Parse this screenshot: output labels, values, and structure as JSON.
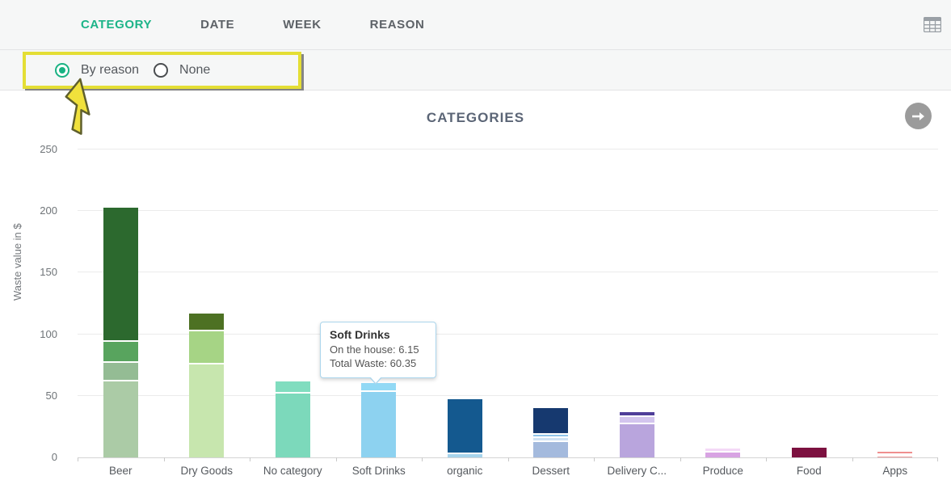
{
  "tabs": [
    {
      "label": "CATEGORY",
      "active": true
    },
    {
      "label": "DATE",
      "active": false
    },
    {
      "label": "WEEK",
      "active": false
    },
    {
      "label": "REASON",
      "active": false
    }
  ],
  "toolbar": {
    "grid_icon": "table-grid-icon"
  },
  "radio_group": {
    "options": [
      {
        "label": "By reason",
        "selected": true
      },
      {
        "label": "None",
        "selected": false
      }
    ]
  },
  "annotation": {
    "highlight_color": "#e4de35",
    "arrow_color": "#f0e13c"
  },
  "next_button": {
    "icon": "arrow-right",
    "color": "#9b9b9b"
  },
  "chart_data": {
    "type": "bar",
    "subtype": "stacked",
    "title": "CATEGORIES",
    "xlabel": "",
    "ylabel": "Waste value in $",
    "ylim": [
      0,
      250
    ],
    "yticks": [
      0,
      50,
      100,
      150,
      200,
      250
    ],
    "grid": true,
    "categories": [
      "Beer",
      "Dry Goods",
      "No category",
      "Soft Drinks",
      "organic",
      "Dessert",
      "Delivery C...",
      "Produce",
      "Food",
      "Apps"
    ],
    "bars": [
      {
        "category": "Beer",
        "total": 203,
        "segments": [
          {
            "value": 108,
            "color": "#2c692e"
          },
          {
            "value": 17,
            "color": "#58a45e"
          },
          {
            "value": 15,
            "color": "#94bc94"
          },
          {
            "value": 63,
            "color": "#abcba6"
          }
        ]
      },
      {
        "category": "Dry Goods",
        "total": 117,
        "segments": [
          {
            "value": 13,
            "color": "#4d7123"
          },
          {
            "value": 27,
            "color": "#a6d485"
          },
          {
            "value": 77,
            "color": "#c7e6ae"
          }
        ]
      },
      {
        "category": "No category",
        "total": 62,
        "segments": [
          {
            "value": 9,
            "color": "#80ddbf"
          },
          {
            "value": 53,
            "color": "#7cd9bb"
          }
        ]
      },
      {
        "category": "Soft Drinks",
        "total": 60.35,
        "segments": [
          {
            "value": 6.15,
            "color": "#92d9f5"
          },
          {
            "value": 54.2,
            "color": "#8dd2f0"
          }
        ]
      },
      {
        "category": "organic",
        "total": 47,
        "segments": [
          {
            "value": 43,
            "color": "#14598f"
          },
          {
            "value": 4,
            "color": "#a6d4ec"
          }
        ]
      },
      {
        "category": "Dessert",
        "total": 40,
        "segments": [
          {
            "value": 20,
            "color": "#16396f"
          },
          {
            "value": 3,
            "color": "#8fc4ea"
          },
          {
            "value": 3,
            "color": "#cfe2f4"
          },
          {
            "value": 14,
            "color": "#a4badd"
          }
        ]
      },
      {
        "category": "Delivery C...",
        "total": 37,
        "segments": [
          {
            "value": 3,
            "color": "#4f3e99"
          },
          {
            "value": 6,
            "color": "#d3c5ee"
          },
          {
            "value": 28,
            "color": "#b9a5dd"
          }
        ]
      },
      {
        "category": "Produce",
        "total": 7,
        "segments": [
          {
            "value": 2,
            "color": "#f4d9f7"
          },
          {
            "value": 5,
            "color": "#d8a3e3"
          }
        ]
      },
      {
        "category": "Food",
        "total": 8,
        "segments": [
          {
            "value": 8,
            "color": "#7c1140"
          }
        ]
      },
      {
        "category": "Apps",
        "total": 4,
        "segments": [
          {
            "value": 1.3,
            "color": "#f08f8f"
          },
          {
            "value": 0.9,
            "color": "#f9c7c7"
          },
          {
            "value": 1.8,
            "color": "#ee9b9b"
          }
        ]
      }
    ],
    "tooltip": {
      "title": "Soft Drinks",
      "line1": "On the house: 6.15",
      "line2": "Total Waste: 60.35",
      "anchor_category": "Soft Drinks"
    },
    "legend": null
  }
}
